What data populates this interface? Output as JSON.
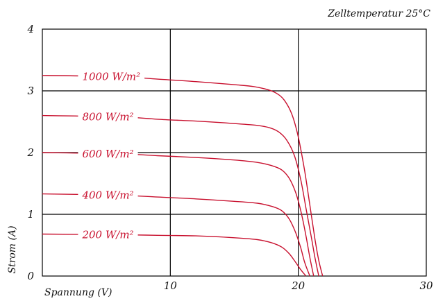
{
  "annotation": "Zelltemperatur 25°C",
  "chart_data": {
    "type": "line",
    "title": "",
    "xlabel": "Spannung (V)",
    "ylabel": "Strom (A)",
    "xlim": [
      0,
      30
    ],
    "ylim": [
      0,
      4
    ],
    "x_ticks": [
      "10",
      "20",
      "30"
    ],
    "y_ticks": [
      "0",
      "1",
      "2",
      "3",
      "4"
    ],
    "grid": true,
    "line_color": "#c8102e",
    "grid_color": "#000000",
    "series": [
      {
        "name": "1000 W/m²",
        "x": [
          0,
          6,
          9,
          12,
          15,
          16.5,
          17.6,
          18.3,
          18.9,
          19.5,
          20.0,
          20.5,
          20.9,
          21.3,
          21.6,
          21.9
        ],
        "y": [
          3.25,
          3.23,
          3.19,
          3.15,
          3.1,
          3.07,
          3.02,
          2.96,
          2.85,
          2.62,
          2.25,
          1.7,
          1.15,
          0.6,
          0.25,
          0.0
        ]
      },
      {
        "name": "800 W/m²",
        "x": [
          0,
          6,
          9,
          12,
          15,
          16.8,
          17.8,
          18.5,
          19.1,
          19.7,
          20.2,
          20.6,
          21.0,
          21.3,
          21.6
        ],
        "y": [
          2.6,
          2.58,
          2.54,
          2.51,
          2.47,
          2.44,
          2.4,
          2.33,
          2.2,
          1.95,
          1.55,
          1.1,
          0.65,
          0.3,
          0.0
        ]
      },
      {
        "name": "600 W/m²",
        "x": [
          0,
          6,
          9,
          12,
          15,
          16.8,
          17.9,
          18.7,
          19.3,
          19.8,
          20.2,
          20.6,
          20.9,
          21.2
        ],
        "y": [
          2.0,
          1.98,
          1.95,
          1.92,
          1.88,
          1.84,
          1.79,
          1.72,
          1.58,
          1.35,
          1.05,
          0.65,
          0.3,
          0.0
        ]
      },
      {
        "name": "400 W/m²",
        "x": [
          0,
          6,
          9,
          12,
          15,
          16.8,
          17.9,
          18.7,
          19.3,
          19.8,
          20.2,
          20.5,
          20.9
        ],
        "y": [
          1.33,
          1.31,
          1.28,
          1.25,
          1.21,
          1.18,
          1.13,
          1.06,
          0.92,
          0.7,
          0.45,
          0.22,
          0.0
        ]
      },
      {
        "name": "200 W/m²",
        "x": [
          0,
          6,
          9,
          12,
          15,
          16.8,
          17.9,
          18.7,
          19.3,
          19.8,
          20.2,
          20.6
        ],
        "y": [
          0.68,
          0.67,
          0.66,
          0.65,
          0.62,
          0.59,
          0.54,
          0.47,
          0.36,
          0.22,
          0.1,
          0.0
        ]
      }
    ]
  }
}
